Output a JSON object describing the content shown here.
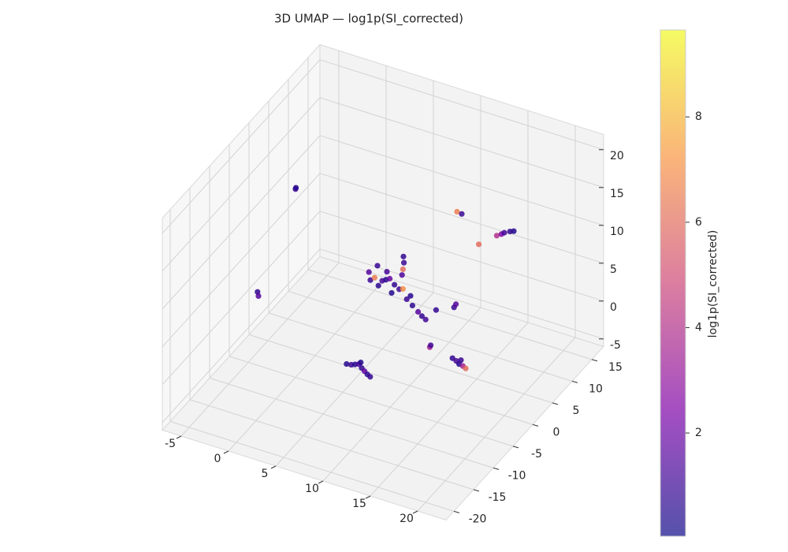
{
  "chart_data": {
    "type": "scatter3d",
    "title": "3D UMAP — log1p(SI_corrected)",
    "colorbar_label": "log1p(SI_corrected)",
    "x": [
      5.4,
      5.9,
      6.3,
      6.7,
      7.0,
      7.3,
      7.6,
      7.9,
      6.9,
      16.6,
      17.0,
      17.3,
      17.7,
      18.0,
      17.5,
      3.75,
      3.6,
      4.2,
      4.6,
      5.0,
      5.4,
      5.8,
      6.3,
      6.8,
      7.2,
      5.5,
      4.5,
      6.0,
      7.6,
      8.2,
      8.8,
      9.2,
      9.6,
      7.25,
      7.3,
      7.2,
      7.1,
      8.0,
      10.0,
      10.5,
      12.3,
      14.2,
      14.7,
      15.0,
      15.6,
      16.0,
      -6.25,
      -6.2,
      -6.0,
      -6.1,
      14.2,
      14.3,
      12.6,
      12.8,
      10.7
    ],
    "y": [
      -5,
      -5,
      -5,
      -5,
      -5,
      -5,
      -5,
      -5,
      -5,
      -5,
      -5,
      -5,
      -5,
      -5,
      -5,
      5,
      5,
      5,
      5,
      5,
      5,
      5,
      5,
      5,
      5,
      5,
      5,
      5,
      5,
      5,
      5,
      5,
      5,
      5,
      5,
      5,
      5,
      5,
      12,
      12,
      12,
      12,
      12,
      12,
      12,
      12,
      10,
      10,
      0,
      0,
      -5,
      -5,
      5,
      5,
      5
    ],
    "z": [
      -2.1,
      -2.0,
      -1.8,
      -1.6,
      -2.0,
      -2.3,
      -2.6,
      -2.8,
      -1.3,
      3.1,
      2.9,
      2.6,
      2.5,
      2.3,
      3.2,
      2.6,
      3.6,
      3.1,
      2.2,
      3.0,
      3.3,
      3.6,
      3.0,
      2.6,
      2.8,
      4.4,
      4.8,
      1.8,
      1.6,
      1.0,
      0.4,
      0.0,
      -0.3,
      7.1,
      6.3,
      5.4,
      4.6,
      2.2,
      10.1,
      10.0,
      6.7,
      8.6,
      9.0,
      9.3,
      9.7,
      9.9,
      7.8,
      8.0,
      -0.5,
      0.0,
      3.6,
      3.9,
      2.5,
      3.0,
      1.4
    ],
    "c": [
      0.5,
      1.0,
      0.6,
      1.4,
      0.8,
      1.8,
      0.7,
      0.9,
      0.5,
      0.8,
      1.2,
      0.6,
      3.5,
      6.0,
      1.0,
      1.0,
      1.5,
      6.5,
      0.7,
      1.2,
      0.6,
      2.0,
      0.8,
      1.1,
      7.0,
      1.3,
      0.9,
      0.5,
      1.0,
      0.7,
      1.6,
      0.9,
      1.2,
      0.8,
      1.0,
      6.0,
      1.4,
      0.6,
      6.5,
      1.0,
      6.0,
      4.0,
      2.5,
      1.2,
      0.8,
      0.5,
      1.0,
      0.6,
      1.5,
      0.8,
      3.5,
      1.2,
      1.0,
      1.6,
      0.8
    ],
    "xlim": [
      -7,
      23
    ],
    "ylim": [
      -22,
      18
    ],
    "zlim": [
      -6,
      22
    ],
    "xticks": [
      -5,
      0,
      5,
      10,
      15,
      20
    ],
    "yticks": [
      -20,
      -15,
      -10,
      -5,
      0,
      5,
      10,
      15
    ],
    "zticks": [
      -5,
      0,
      5,
      10,
      15,
      20
    ],
    "clim": [
      0.04,
      9.65
    ],
    "cticks": [
      2,
      4,
      6,
      8
    ],
    "colormap": [
      "#0d0887",
      "#7e03a8",
      "#cc4778",
      "#f89540",
      "#f0f921"
    ],
    "grid": true
  }
}
